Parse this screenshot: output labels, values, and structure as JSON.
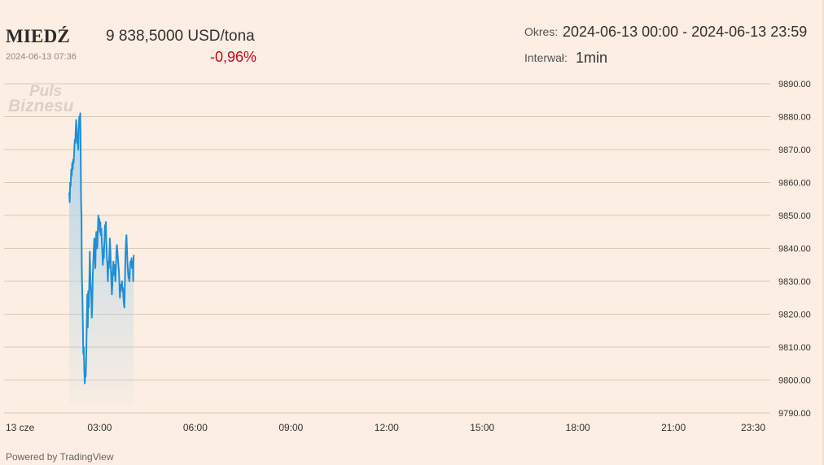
{
  "header": {
    "title": "MIEDŹ",
    "timestamp": "2024-06-13 07:36",
    "price": "9 838,5000 USD/tona",
    "change": "-0,96%",
    "period_label": "Okres:",
    "period_value": "2024-06-13 00:00 - 2024-06-13 23:59",
    "interval_label": "Interwał:",
    "interval_value": "1min"
  },
  "watermark": {
    "line1": "Puls",
    "line2": "Biznesu"
  },
  "footer": {
    "powered": "Powered by TradingView"
  },
  "colors": {
    "line": "#1e8fd6",
    "fill_top": "#aed3e8",
    "grid": "#d8c8b8",
    "negative": "#d0021b"
  },
  "chart_data": {
    "type": "area",
    "ylim": [
      9790,
      9890
    ],
    "yticks": [
      "9890.00",
      "9880.00",
      "9870.00",
      "9860.00",
      "9850.00",
      "9840.00",
      "9830.00",
      "9820.00",
      "9810.00",
      "9800.00",
      "9790.00"
    ],
    "ytick_values": [
      9890,
      9880,
      9870,
      9860,
      9850,
      9840,
      9830,
      9820,
      9810,
      9800,
      9790
    ],
    "xticks": [
      "13 cze",
      "03:00",
      "06:00",
      "09:00",
      "12:00",
      "15:00",
      "18:00",
      "21:00",
      "23:30"
    ],
    "xtick_minutes": [
      0,
      180,
      360,
      540,
      720,
      900,
      1080,
      1260,
      1410
    ],
    "xlim_minutes": [
      0,
      1440
    ],
    "series": [
      {
        "points": [
          [
            60,
            9857
          ],
          [
            62,
            9854
          ],
          [
            64,
            9860
          ],
          [
            66,
            9859
          ],
          [
            68,
            9864
          ],
          [
            70,
            9862
          ],
          [
            72,
            9866
          ],
          [
            74,
            9864
          ],
          [
            76,
            9867
          ],
          [
            78,
            9866
          ],
          [
            80,
            9870
          ],
          [
            82,
            9873
          ],
          [
            84,
            9872
          ],
          [
            86,
            9876
          ],
          [
            88,
            9879
          ],
          [
            90,
            9876
          ],
          [
            92,
            9872
          ],
          [
            94,
            9874
          ],
          [
            96,
            9870
          ],
          [
            98,
            9876
          ],
          [
            100,
            9880
          ],
          [
            102,
            9879
          ],
          [
            104,
            9881
          ],
          [
            105,
            9875
          ],
          [
            106,
            9866
          ],
          [
            107,
            9856
          ],
          [
            108,
            9852
          ],
          [
            109,
            9850
          ],
          [
            110,
            9836
          ],
          [
            111,
            9830
          ],
          [
            112,
            9828
          ],
          [
            114,
            9818
          ],
          [
            116,
            9808
          ],
          [
            118,
            9810
          ],
          [
            120,
            9803
          ],
          [
            122,
            9799
          ],
          [
            124,
            9802
          ],
          [
            126,
            9801
          ],
          [
            128,
            9809
          ],
          [
            130,
            9818
          ],
          [
            132,
            9826
          ],
          [
            134,
            9816
          ],
          [
            136,
            9827
          ],
          [
            138,
            9822
          ],
          [
            140,
            9830
          ],
          [
            142,
            9839
          ],
          [
            144,
            9832
          ],
          [
            146,
            9828
          ],
          [
            148,
            9826
          ],
          [
            150,
            9819
          ],
          [
            152,
            9824
          ],
          [
            154,
            9832
          ],
          [
            156,
            9836
          ],
          [
            158,
            9840
          ],
          [
            160,
            9843
          ],
          [
            162,
            9838
          ],
          [
            164,
            9834
          ],
          [
            166,
            9842
          ],
          [
            168,
            9845
          ],
          [
            170,
            9842
          ],
          [
            172,
            9840
          ],
          [
            174,
            9846
          ],
          [
            176,
            9850
          ],
          [
            178,
            9847
          ],
          [
            180,
            9849
          ],
          [
            182,
            9845
          ],
          [
            184,
            9848
          ],
          [
            186,
            9844
          ],
          [
            188,
            9846
          ],
          [
            190,
            9842
          ],
          [
            192,
            9839
          ],
          [
            194,
            9835
          ],
          [
            196,
            9840
          ],
          [
            198,
            9837
          ],
          [
            200,
            9842
          ],
          [
            202,
            9847
          ],
          [
            204,
            9845
          ],
          [
            206,
            9848
          ],
          [
            208,
            9842
          ],
          [
            210,
            9837
          ],
          [
            212,
            9835
          ],
          [
            214,
            9830
          ],
          [
            216,
            9836
          ],
          [
            218,
            9834
          ],
          [
            220,
            9838
          ],
          [
            222,
            9843
          ],
          [
            224,
            9839
          ],
          [
            226,
            9834
          ],
          [
            228,
            9830
          ],
          [
            230,
            9826
          ],
          [
            232,
            9829
          ],
          [
            234,
            9834
          ],
          [
            236,
            9836
          ],
          [
            238,
            9832
          ],
          [
            240,
            9835
          ],
          [
            242,
            9833
          ],
          [
            244,
            9830
          ],
          [
            246,
            9834
          ],
          [
            248,
            9839
          ],
          [
            250,
            9841
          ],
          [
            252,
            9839
          ],
          [
            254,
            9837
          ],
          [
            256,
            9835
          ],
          [
            258,
            9833
          ],
          [
            260,
            9829
          ],
          [
            262,
            9825
          ],
          [
            264,
            9827
          ],
          [
            266,
            9829
          ],
          [
            268,
            9828
          ],
          [
            270,
            9830
          ],
          [
            272,
            9827
          ],
          [
            274,
            9828
          ],
          [
            276,
            9825
          ],
          [
            278,
            9823
          ],
          [
            280,
            9822
          ],
          [
            282,
            9830
          ],
          [
            284,
            9838
          ],
          [
            286,
            9842
          ],
          [
            288,
            9844
          ],
          [
            290,
            9840
          ],
          [
            292,
            9836
          ],
          [
            294,
            9833
          ],
          [
            296,
            9831
          ],
          [
            298,
            9831
          ],
          [
            300,
            9830
          ],
          [
            302,
            9834
          ],
          [
            304,
            9836
          ],
          [
            306,
            9835
          ],
          [
            308,
            9837
          ],
          [
            310,
            9834
          ],
          [
            312,
            9836
          ],
          [
            314,
            9834
          ],
          [
            315,
            9830
          ],
          [
            316,
            9836
          ],
          [
            317,
            9838
          ]
        ]
      }
    ]
  }
}
